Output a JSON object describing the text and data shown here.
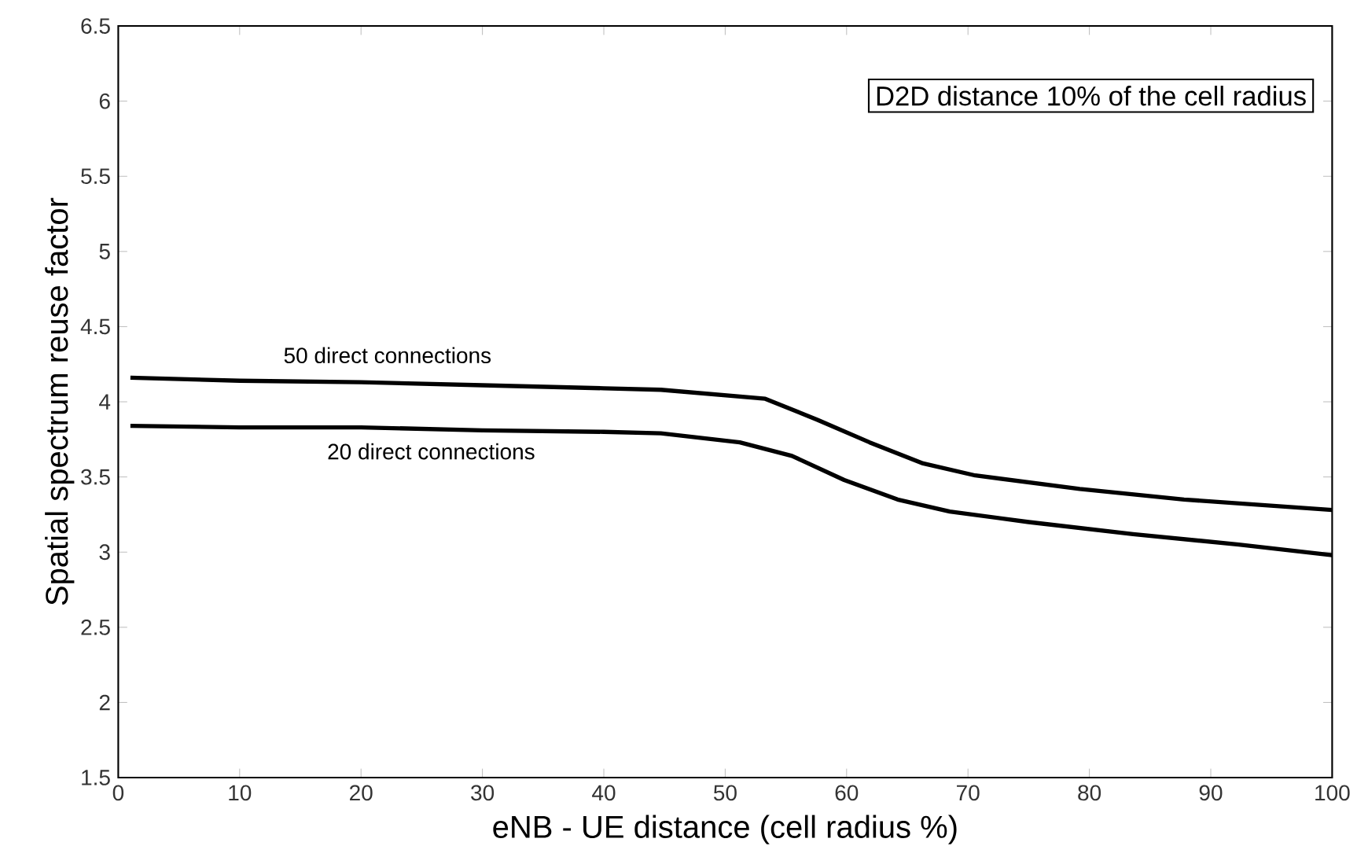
{
  "chart_data": {
    "type": "line",
    "xlabel": "eNB - UE distance (cell radius %)",
    "ylabel": "Spatial spectrum reuse factor",
    "xlim": [
      0,
      100
    ],
    "ylim": [
      1.5,
      6.5
    ],
    "xticks": [
      0,
      10,
      20,
      30,
      40,
      50,
      60,
      70,
      80,
      90,
      100
    ],
    "yticks": [
      1.5,
      2,
      2.5,
      3,
      3.5,
      4,
      4.5,
      5,
      5.5,
      6,
      6.5
    ],
    "grid": false,
    "marker": "none",
    "line_style": "solid",
    "series": [
      {
        "color": "#000000",
        "x": [
          1,
          10,
          20,
          30,
          40,
          44.7,
          53.3,
          57.6,
          61.9,
          66.3,
          70.6,
          79.2,
          87.8,
          100
        ],
        "values": [
          4.16,
          4.14,
          4.13,
          4.11,
          4.09,
          4.08,
          4.02,
          3.88,
          3.73,
          3.59,
          3.51,
          3.42,
          3.35,
          3.28
        ]
      },
      {
        "color": "#000000",
        "x": [
          1,
          10,
          20,
          30,
          40,
          44.7,
          51.2,
          55.5,
          59.8,
          64.2,
          68.5,
          75,
          83.6,
          92.3,
          100
        ],
        "values": [
          3.84,
          3.83,
          3.83,
          3.81,
          3.8,
          3.79,
          3.73,
          3.64,
          3.48,
          3.35,
          3.27,
          3.2,
          3.12,
          3.05,
          2.98
        ]
      }
    ],
    "annotations": [
      "50 direct connections",
      "20 direct connections",
      "D2D distance 10% of the cell radius"
    ]
  }
}
